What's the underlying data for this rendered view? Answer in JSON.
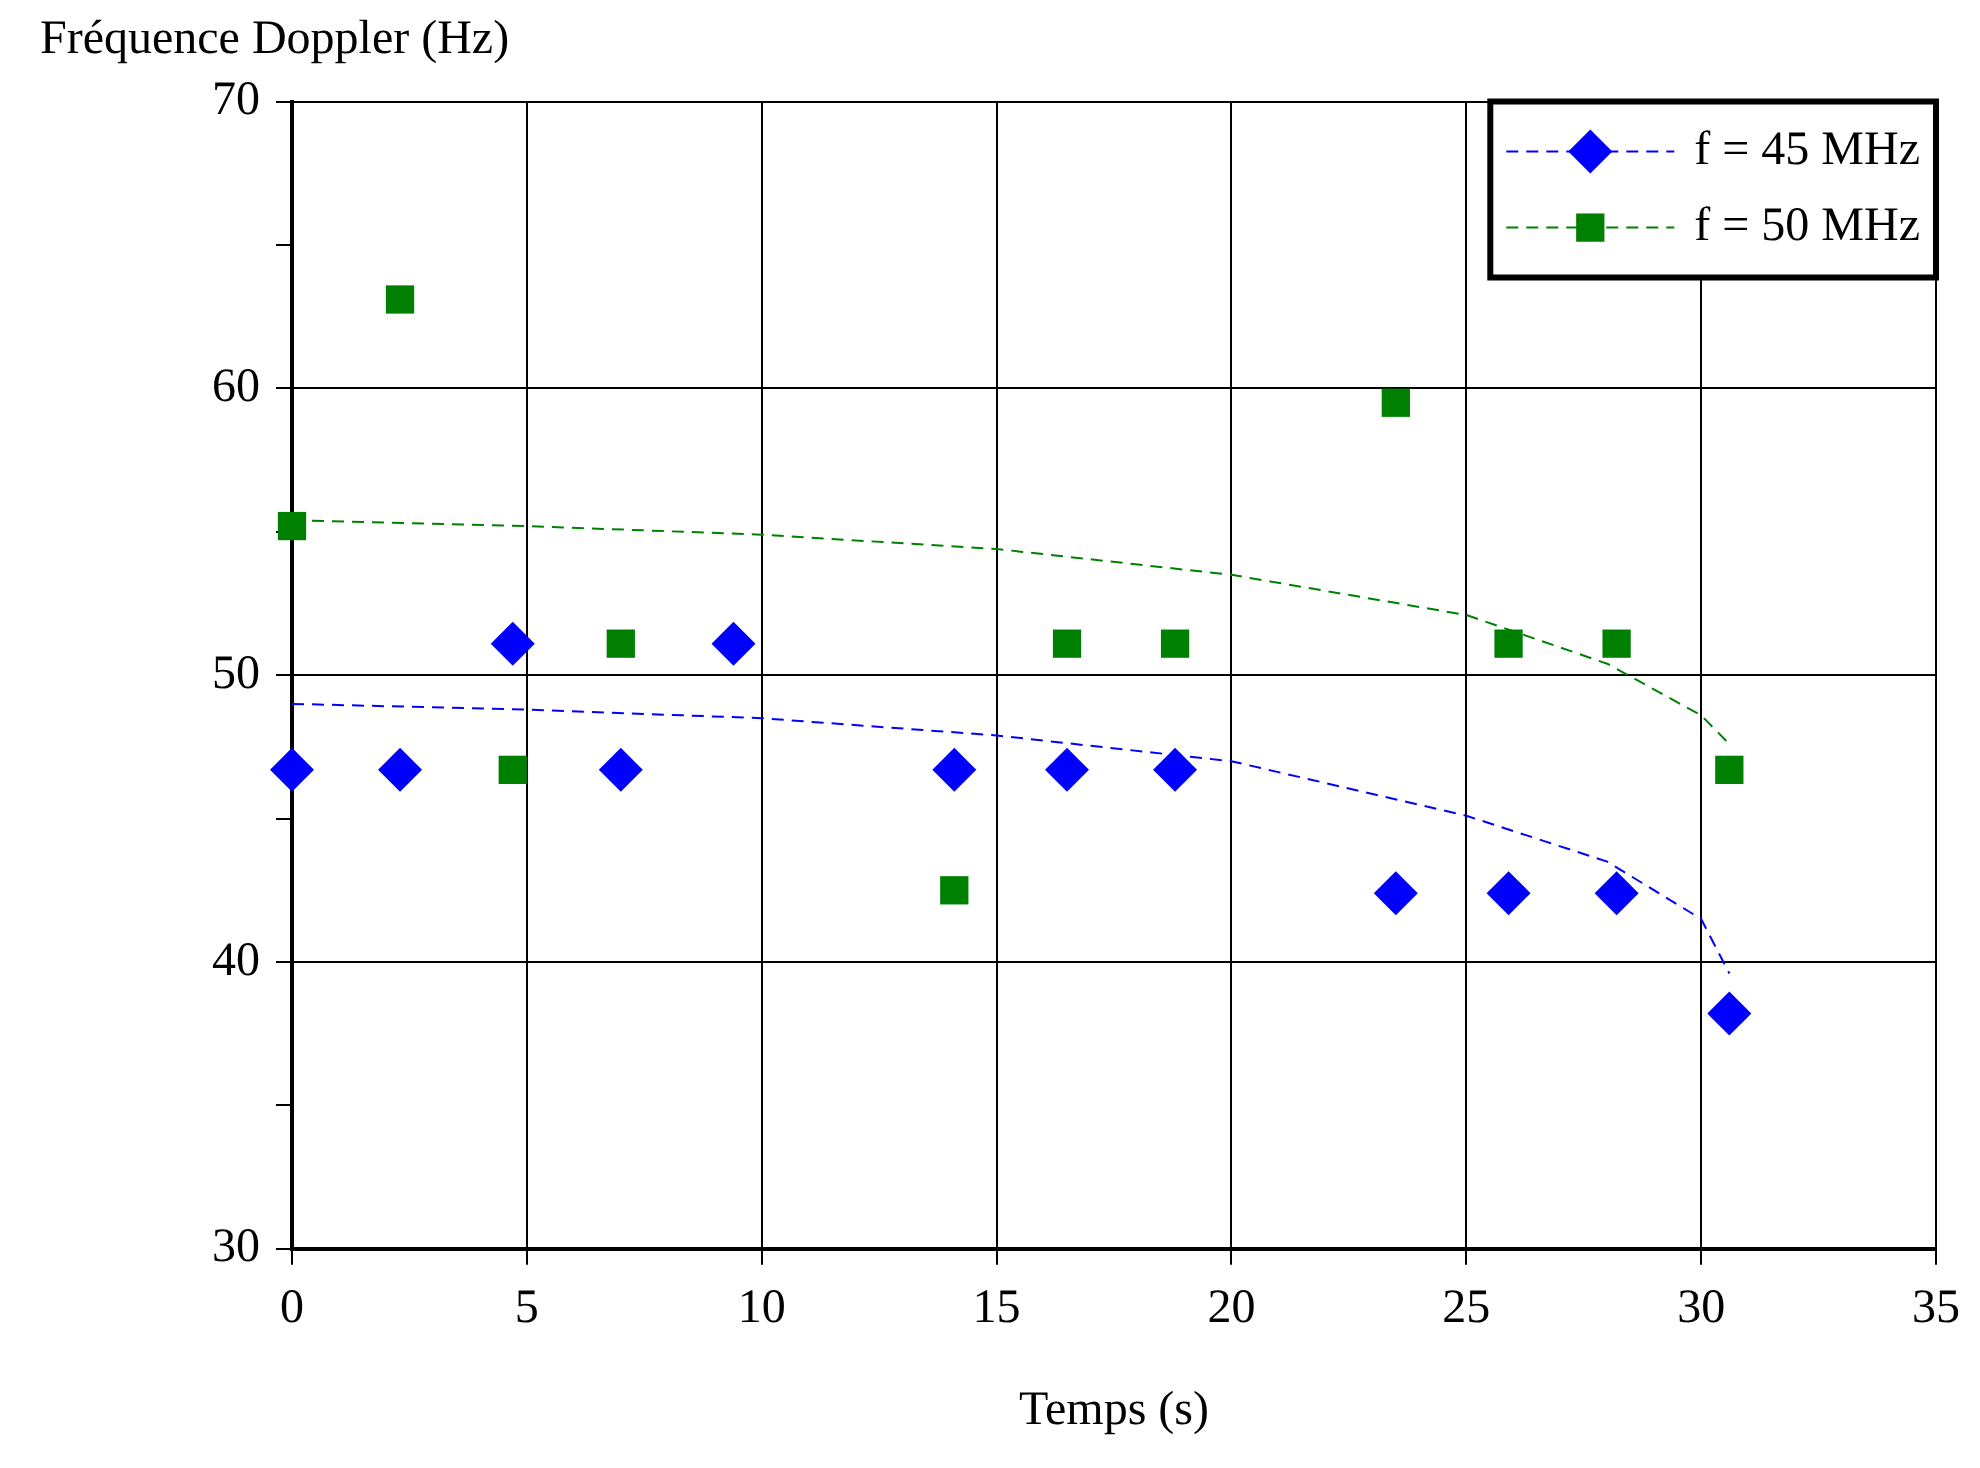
{
  "chart_data": {
    "type": "scatter",
    "ylabel": "Fréquence Doppler (Hz)",
    "xlabel": "Temps (s)",
    "xlim": [
      0,
      35
    ],
    "xticks": [
      0,
      5,
      10,
      15,
      20,
      25,
      30,
      35
    ],
    "ylim": [
      30,
      70
    ],
    "yticks": [
      30,
      {
        "value": 35,
        "label": null
      },
      40,
      {
        "value": 45,
        "label": null
      },
      50,
      {
        "value": 55,
        "label": null
      },
      60,
      {
        "value": 65,
        "label": null
      },
      70
    ],
    "grid": true,
    "legend": "top right",
    "series": [
      {
        "name": "f = 45 MHz",
        "type": "scatter",
        "color": "#0000ff",
        "marker": "diamond",
        "x": [
          0,
          2.3,
          4.7,
          7.0,
          9.4,
          14.1,
          16.5,
          18.8,
          23.5,
          25.9,
          28.2,
          30.6
        ],
        "values": [
          46.7,
          46.7,
          51.1,
          46.7,
          51.1,
          46.7,
          46.7,
          46.7,
          42.4,
          42.4,
          42.4,
          38.2
        ]
      },
      {
        "name": "f = 50 MHz",
        "type": "scatter",
        "color": "#008000",
        "marker": "square",
        "x": [
          0,
          2.3,
          4.7,
          7.0,
          14.1,
          16.5,
          18.8,
          23.5,
          25.9,
          28.2,
          30.6
        ],
        "values": [
          55.2,
          63.1,
          46.7,
          51.1,
          42.5,
          51.1,
          51.1,
          59.5,
          51.1,
          51.1,
          46.7
        ]
      },
      {
        "type": "line",
        "color": "#0000ff",
        "marker": "none",
        "line_style": "dashed",
        "x": [
          0,
          5,
          10,
          15,
          20,
          25,
          28,
          30,
          30.6
        ],
        "values": [
          49.0,
          48.8,
          48.5,
          47.9,
          47.0,
          45.1,
          43.5,
          41.5,
          39.6
        ]
      },
      {
        "type": "line",
        "color": "#008000",
        "marker": "none",
        "line_style": "dashed",
        "x": [
          0,
          5,
          10,
          15,
          20,
          25,
          28,
          30,
          30.6
        ],
        "values": [
          55.4,
          55.2,
          54.9,
          54.4,
          53.5,
          52.1,
          50.4,
          48.6,
          47.6
        ]
      }
    ]
  }
}
